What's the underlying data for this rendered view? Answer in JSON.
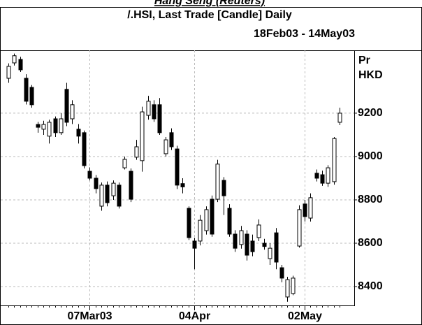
{
  "chart_data": {
    "type": "candlestick",
    "title": "Hang Seng (Reuters)",
    "subtitle": [
      "/.HSI, Last Trade [Candle] Daily",
      "18Feb03 - 14May03"
    ],
    "y_axis_label": [
      "Pr",
      "HKD"
    ],
    "categories": [
      null,
      null,
      null,
      null,
      null,
      null,
      null,
      null,
      null,
      null,
      null,
      null,
      null,
      null,
      "07Mar03",
      null,
      null,
      null,
      null,
      null,
      null,
      null,
      null,
      null,
      null,
      null,
      null,
      null,
      null,
      null,
      null,
      null,
      "04Apr",
      null,
      null,
      null,
      null,
      null,
      null,
      null,
      null,
      null,
      null,
      null,
      null,
      null,
      null,
      null,
      null,
      null,
      null,
      "02May",
      null,
      null,
      null,
      null,
      null,
      null
    ],
    "open": [
      9361,
      9432,
      9448,
      9361,
      9319,
      9148,
      9126,
      9094,
      9174,
      9110,
      9310,
      9174,
      9126,
      9110,
      8932,
      8900,
      8771,
      8868,
      8819,
      8868,
      8948,
      8932,
      8997,
      8981,
      9190,
      9239,
      9239,
      9013,
      9110,
      9035,
      8875,
      8761,
      8610,
      8610,
      8658,
      8803,
      8803,
      8890,
      8761,
      8642,
      8594,
      8642,
      8610,
      8626,
      8600,
      8529,
      8648,
      8487,
      8352,
      8368,
      8587,
      8781,
      8716,
      8923,
      8916,
      8877,
      8884,
      9158
    ],
    "high": [
      9430,
      9475,
      9460,
      9380,
      9330,
      9160,
      9165,
      9170,
      9185,
      9200,
      9340,
      9260,
      9150,
      9120,
      8950,
      8915,
      8880,
      8885,
      8890,
      8880,
      9000,
      8945,
      9077,
      9230,
      9280,
      9260,
      9270,
      9090,
      9130,
      9050,
      8900,
      8770,
      8625,
      8730,
      8770,
      8820,
      8985,
      8905,
      8780,
      8660,
      8680,
      8660,
      8640,
      8710,
      8620,
      8600,
      8670,
      8500,
      8445,
      8450,
      8775,
      8800,
      8830,
      8940,
      8935,
      8960,
      9090,
      9225
    ],
    "low": [
      9340,
      9420,
      9390,
      9240,
      9225,
      9110,
      9100,
      9060,
      9090,
      9100,
      9140,
      9150,
      9060,
      8945,
      8890,
      8830,
      8750,
      8770,
      8800,
      8760,
      8940,
      8790,
      8985,
      8930,
      9170,
      9160,
      9100,
      9000,
      9030,
      8850,
      8830,
      8615,
      8480,
      8590,
      8640,
      8630,
      8790,
      8730,
      8630,
      8560,
      8575,
      8520,
      8540,
      8610,
      8570,
      8500,
      8480,
      8420,
      8330,
      8360,
      8580,
      8700,
      8700,
      8885,
      8865,
      8860,
      8870,
      9145
    ],
    "close": [
      9416,
      9465,
      9400,
      9255,
      9239,
      9135,
      9148,
      9158,
      9110,
      9174,
      9158,
      9239,
      9094,
      8958,
      8900,
      8852,
      8868,
      8787,
      8877,
      8771,
      8987,
      8803,
      9045,
      9206,
      9255,
      9174,
      9110,
      9077,
      9045,
      8868,
      8860,
      8626,
      8577,
      8706,
      8755,
      8642,
      8965,
      8819,
      8642,
      8577,
      8658,
      8545,
      8561,
      8684,
      8585,
      8577,
      8513,
      8439,
      8432,
      8439,
      8755,
      8723,
      8810,
      8900,
      8877,
      8948,
      9083,
      9200
    ],
    "up_color": "#ffffff",
    "down_color": "#000000",
    "ylim": [
      8313,
      9490
    ],
    "yticks": [
      8400,
      8600,
      8800,
      9000,
      9200
    ],
    "grid": true
  }
}
